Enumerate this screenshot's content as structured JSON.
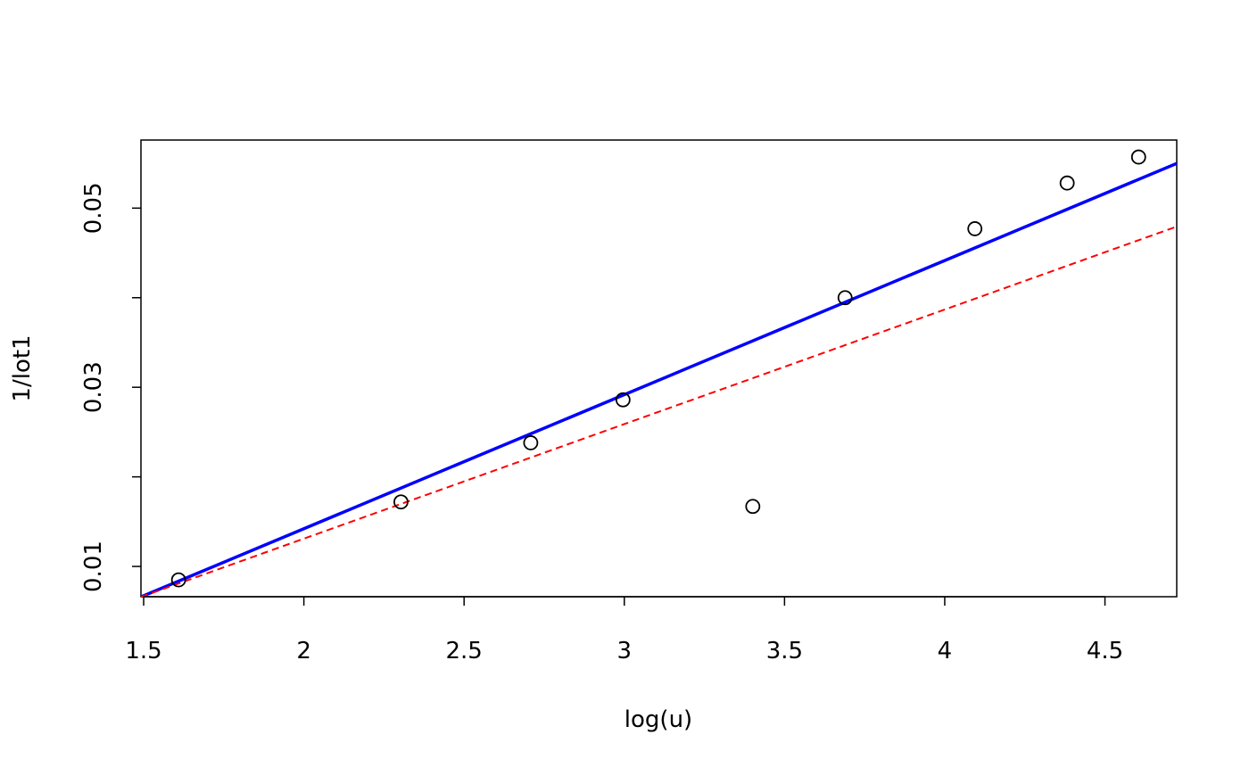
{
  "chart_data": {
    "type": "scatter",
    "x_label": "log(u)",
    "y_label": "1/lot1",
    "x": [
      1.609,
      2.303,
      2.708,
      2.996,
      3.401,
      3.689,
      4.094,
      4.382,
      4.605
    ],
    "values": [
      0.0085,
      0.0172,
      0.0238,
      0.0286,
      0.0167,
      0.04,
      0.0477,
      0.0528,
      0.0557
    ],
    "color": "#000000",
    "xlim": [
      1.4916,
      4.724
    ],
    "xticks": [
      1.5,
      2.0,
      2.5,
      3.0,
      3.5,
      4.0,
      4.5
    ],
    "ylim": [
      0.00662,
      0.0576
    ],
    "yticks": [
      0.01,
      {
        "value": 0.02,
        "label": null
      },
      0.03,
      {
        "value": 0.04,
        "label": null
      },
      0.05
    ],
    "lines": [
      {
        "color": "#0000ff",
        "intercept": -0.01573,
        "slope": 0.01497,
        "dashed": false
      },
      {
        "color": "#ff0000",
        "intercept": -0.01248,
        "slope": 0.01279,
        "dashed": true
      }
    ]
  }
}
